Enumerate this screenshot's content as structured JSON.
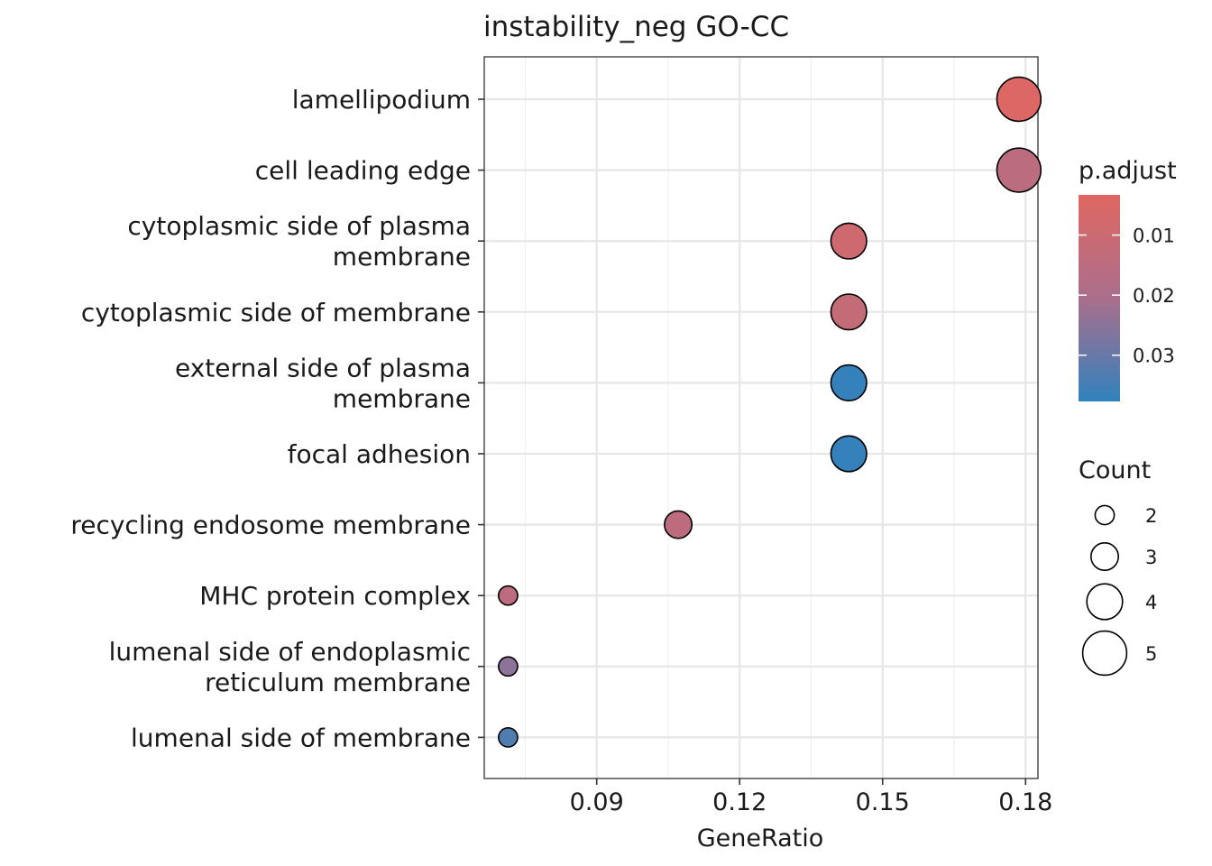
{
  "chart_data": {
    "type": "scatter",
    "title": "instability_neg GO-CC",
    "xlabel": "GeneRatio",
    "ylabel": "",
    "xlim": [
      0.0664,
      0.1826
    ],
    "x_ticks": [
      "0.09",
      "0.12",
      "0.15",
      "0.18"
    ],
    "x_tick_values": [
      0.09,
      0.12,
      0.15,
      0.18
    ],
    "grid": true,
    "categories": [
      [
        "lamellipodium"
      ],
      [
        "cell leading edge"
      ],
      [
        "cytoplasmic side of plasma",
        "membrane"
      ],
      [
        "cytoplasmic side of membrane"
      ],
      [
        "external side of plasma",
        "membrane"
      ],
      [
        "focal adhesion"
      ],
      [
        "recycling endosome membrane"
      ],
      [
        "MHC protein complex"
      ],
      [
        "lumenal side of endoplasmic",
        "reticulum membrane"
      ],
      [
        "lumenal side of membrane"
      ]
    ],
    "points": [
      {
        "term": "lamellipodium",
        "x": 0.1786,
        "count": 5,
        "p_adjust": 0.0045
      },
      {
        "term": "cell leading edge",
        "x": 0.1786,
        "count": 5,
        "p_adjust": 0.0152
      },
      {
        "term": "cytoplasmic side of plasma membrane",
        "x": 0.1429,
        "count": 4,
        "p_adjust": 0.0089
      },
      {
        "term": "cytoplasmic side of membrane",
        "x": 0.1429,
        "count": 4,
        "p_adjust": 0.0122
      },
      {
        "term": "external side of plasma membrane",
        "x": 0.1429,
        "count": 4,
        "p_adjust": 0.0371
      },
      {
        "term": "focal adhesion",
        "x": 0.1429,
        "count": 4,
        "p_adjust": 0.0371
      },
      {
        "term": "recycling endosome membrane",
        "x": 0.1071,
        "count": 3,
        "p_adjust": 0.0147
      },
      {
        "term": "MHC protein complex",
        "x": 0.0714,
        "count": 2,
        "p_adjust": 0.0147
      },
      {
        "term": "lumenal side of endoplasmic reticulum membrane",
        "x": 0.0714,
        "count": 2,
        "p_adjust": 0.0248
      },
      {
        "term": "lumenal side of membrane",
        "x": 0.0714,
        "count": 2,
        "p_adjust": 0.0333
      }
    ],
    "color_legend": {
      "title": "p.adjust",
      "low_color": "#E06762",
      "high_color": "#3182BD",
      "range": [
        0.0033,
        0.0377
      ],
      "ticks": [
        {
          "value": 0.01,
          "label": "0.01"
        },
        {
          "value": 0.02,
          "label": "0.02"
        },
        {
          "value": 0.03,
          "label": "0.03"
        }
      ]
    },
    "size_legend": {
      "title": "Count",
      "entries": [
        {
          "value": 2,
          "label": "2"
        },
        {
          "value": 3,
          "label": "3"
        },
        {
          "value": 4,
          "label": "4"
        },
        {
          "value": 5,
          "label": "5"
        }
      ]
    }
  }
}
